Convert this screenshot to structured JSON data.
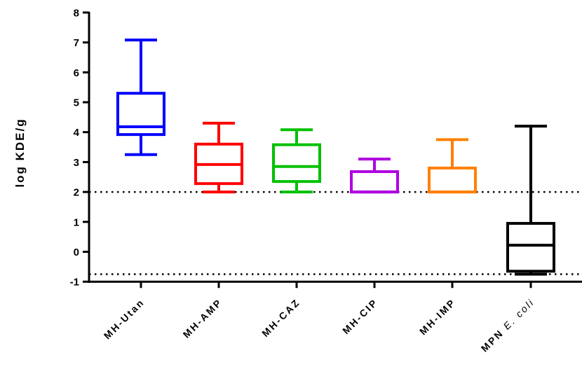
{
  "chart_data": {
    "type": "box",
    "title": "",
    "xlabel": "",
    "ylabel": "log KDE/g",
    "ylim": [
      -1,
      8
    ],
    "yticks": [
      "-1",
      "0",
      "1",
      "2",
      "3",
      "4",
      "5",
      "6",
      "7",
      "8"
    ],
    "grid": false,
    "reference_lines": [
      2.0,
      -0.75
    ],
    "categories": [
      {
        "label": "MH-Utan",
        "prefix": "MH-Utan",
        "italic_suffix": ""
      },
      {
        "label": "MH-AMP",
        "prefix": "MH-AMP",
        "italic_suffix": ""
      },
      {
        "label": "MH-CAZ",
        "prefix": "MH-CAZ",
        "italic_suffix": ""
      },
      {
        "label": "MH-CIP",
        "prefix": "MH-CIP",
        "italic_suffix": ""
      },
      {
        "label": "MH-IMP",
        "prefix": "MH-IMP",
        "italic_suffix": ""
      },
      {
        "label": "MPN E. coli",
        "prefix": "MPN ",
        "italic_suffix": "E. coli"
      }
    ],
    "series": [
      {
        "min": 3.25,
        "q1": 3.92,
        "median": 4.18,
        "q3": 5.3,
        "max": 7.08,
        "color": "#0000ff"
      },
      {
        "min": 2.0,
        "q1": 2.28,
        "median": 2.92,
        "q3": 3.6,
        "max": 4.3,
        "color": "#ff0000"
      },
      {
        "min": 2.0,
        "q1": 2.35,
        "median": 2.85,
        "q3": 3.58,
        "max": 4.08,
        "color": "#00c000"
      },
      {
        "min": 2.0,
        "q1": 2.0,
        "median": 2.0,
        "q3": 2.68,
        "max": 3.1,
        "color": "#b000e0"
      },
      {
        "min": 2.0,
        "q1": 2.0,
        "median": 2.0,
        "q3": 2.8,
        "max": 3.75,
        "color": "#ff8000"
      },
      {
        "min": -0.75,
        "q1": -0.65,
        "median": 0.22,
        "q3": 0.95,
        "max": 4.2,
        "color": "#000000"
      }
    ]
  }
}
